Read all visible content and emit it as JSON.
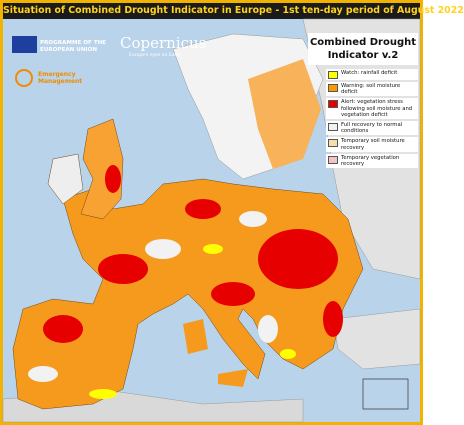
{
  "title": "Situation of Combined Drought Indicator in Europe - 1st ten-day period of August 2022",
  "logos": {
    "eu_line1": "PROGRAMME OF THE",
    "eu_line2": "EUROPEAN UNION",
    "copernicus": "Copernicus",
    "copernicus_tagline": "Europe's eyes on Earth",
    "emergency_line1": "Emergency",
    "emergency_line2": "Management"
  },
  "legend": {
    "title": "Combined Drought Indicator v.2",
    "items": [
      {
        "label": "Watch: rainfall deficit",
        "color": "#ffff00"
      },
      {
        "label": "Warning: soil moisture deficit",
        "color": "#ff9900"
      },
      {
        "label": "Alert: vegetation stress following soil moisture and vegetation deficit",
        "color": "#e60000"
      },
      {
        "label": "Full recovery to normal conditions",
        "color": "#f2f2f2"
      },
      {
        "label": "Temporary soil moisture recovery",
        "color": "#f3dfa8"
      },
      {
        "label": "Temporary vegetation recovery",
        "color": "#f4c2c8"
      }
    ]
  }
}
